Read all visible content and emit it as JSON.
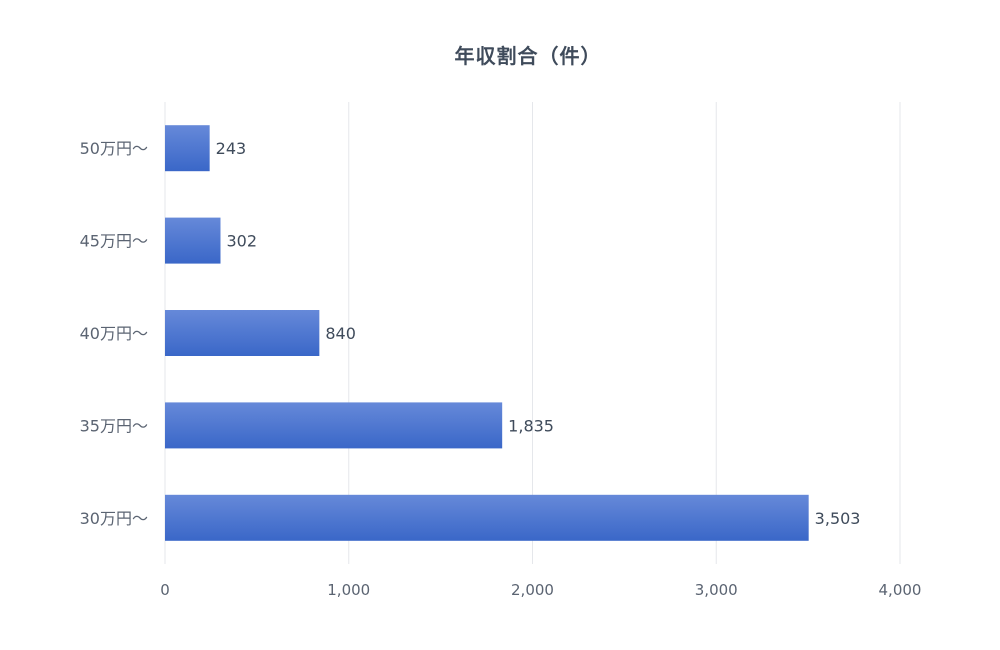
{
  "chart_data": {
    "type": "bar",
    "orientation": "horizontal",
    "title": "年収割合（件）",
    "categories": [
      "50万円〜",
      "45万円〜",
      "40万円〜",
      "35万円〜",
      "30万円〜"
    ],
    "values": [
      243,
      302,
      840,
      1835,
      3503
    ],
    "value_labels": [
      "243",
      "302",
      "840",
      "1,835",
      "3,503"
    ],
    "xlim": [
      0,
      4000
    ],
    "x_ticks": [
      0,
      1000,
      2000,
      3000,
      4000
    ],
    "x_tick_labels": [
      "0",
      "1,000",
      "2,000",
      "3,000",
      "4,000"
    ],
    "grid": true,
    "bar_color": "#3a67c8",
    "bar_color_light": "#6689d9",
    "grid_color": "#e5e7eb"
  }
}
